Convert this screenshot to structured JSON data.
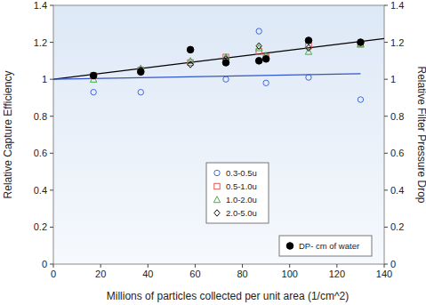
{
  "chart_data": {
    "type": "scatter",
    "x_label": "Millions of particles collected per unit area  (1/cm^2)",
    "y_label": "Relative Capture Efficiency",
    "y2_label": "Relative Filter Pressure Drop",
    "xlim": [
      0,
      140
    ],
    "xticks": [
      0,
      20,
      40,
      60,
      80,
      100,
      120,
      140
    ],
    "ylim": [
      0,
      1.4
    ],
    "yticks": [
      0,
      0.2,
      0.4,
      0.6,
      0.8,
      1,
      1.2,
      1.4
    ],
    "y2lim": [
      0,
      1.4
    ],
    "y2ticks": [
      0,
      0.2,
      0.4,
      0.6,
      0.8,
      1,
      1.2,
      1.4
    ],
    "series": [
      {
        "name": "0.3-0.5u",
        "color": "#4466dd",
        "marker": "circle",
        "x": [
          17,
          37,
          73,
          87,
          90,
          108,
          130
        ],
        "values": [
          0.93,
          0.93,
          1.0,
          1.26,
          0.98,
          1.01,
          0.89
        ]
      },
      {
        "name": "0.5-1.0u",
        "color": "#e05a5a",
        "marker": "square",
        "x": [
          17,
          37,
          58,
          73,
          87,
          90,
          108,
          130
        ],
        "values": [
          1.02,
          1.05,
          1.09,
          1.12,
          1.15,
          1.12,
          1.18,
          1.19
        ]
      },
      {
        "name": "1.0-2.0u",
        "color": "#44b044",
        "marker": "triangle",
        "x": [
          17,
          37,
          58,
          73,
          87,
          90,
          108,
          130
        ],
        "values": [
          1.0,
          1.06,
          1.1,
          1.12,
          1.17,
          1.13,
          1.15,
          1.19
        ]
      },
      {
        "name": "2.0-5.0u",
        "color": "#111111",
        "marker": "diamond",
        "x": [
          17,
          37,
          58,
          73,
          87,
          90,
          108,
          130
        ],
        "values": [
          1.02,
          1.05,
          1.08,
          1.11,
          1.18,
          1.11,
          1.17,
          1.2
        ]
      },
      {
        "name": "DP- cm of water",
        "color": "#000000",
        "marker": "filled-circle",
        "axis": "y2",
        "x": [
          17,
          37,
          58,
          73,
          87,
          90,
          108,
          130
        ],
        "values": [
          1.02,
          1.04,
          1.16,
          1.09,
          1.1,
          1.11,
          1.21,
          1.2
        ]
      },
      {
        "type": "line",
        "color": "#000000",
        "line_style": "solid",
        "x": [
          0,
          140
        ],
        "values": [
          1.0,
          1.22
        ]
      },
      {
        "type": "line",
        "color": "#3355cc",
        "line_style": "solid",
        "x": [
          0,
          130
        ],
        "values": [
          1.0,
          1.03
        ]
      }
    ]
  }
}
